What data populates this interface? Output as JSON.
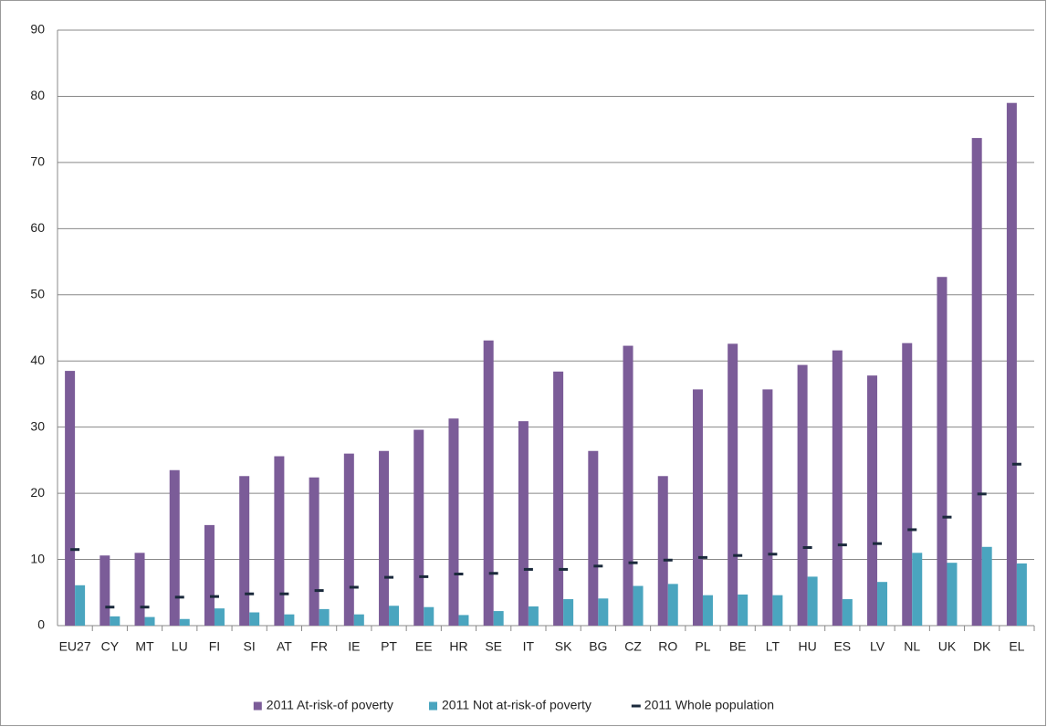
{
  "chart_data": {
    "type": "bar",
    "categories": [
      "EU27",
      "CY",
      "MT",
      "LU",
      "FI",
      "SI",
      "AT",
      "FR",
      "IE",
      "PT",
      "EE",
      "HR",
      "SE",
      "IT",
      "SK",
      "BG",
      "CZ",
      "RO",
      "PL",
      "BE",
      "LT",
      "HU",
      "ES",
      "LV",
      "NL",
      "UK",
      "DK",
      "EL"
    ],
    "series": [
      {
        "name": "2011 At-risk-of poverty",
        "color": "#7b5c98",
        "style": "bar",
        "values": [
          38.5,
          10.6,
          11,
          23.5,
          15.2,
          22.6,
          25.6,
          22.4,
          26,
          26.4,
          29.6,
          31.3,
          43.1,
          30.9,
          38.4,
          26.4,
          42.3,
          22.6,
          35.7,
          42.6,
          35.7,
          39.4,
          41.6,
          37.8,
          42.7,
          52.7,
          73.7,
          79
        ]
      },
      {
        "name": "2011 Not at-risk-of poverty",
        "color": "#4aa5bf",
        "style": "bar",
        "values": [
          6.1,
          1.4,
          1.3,
          1.0,
          2.6,
          2.0,
          1.7,
          2.5,
          1.7,
          3.0,
          2.8,
          1.6,
          2.2,
          2.9,
          4.0,
          4.1,
          6.0,
          6.3,
          4.6,
          4.7,
          4.6,
          7.4,
          4.0,
          6.6,
          11.0,
          9.5,
          11.9,
          9.4
        ]
      },
      {
        "name": "2011 Whole population",
        "color": "#1b2a3c",
        "style": "dash",
        "values": [
          11.5,
          2.8,
          2.8,
          4.3,
          4.4,
          4.8,
          4.8,
          5.3,
          5.8,
          7.3,
          7.4,
          7.8,
          7.9,
          8.5,
          8.5,
          9.0,
          9.5,
          9.9,
          10.3,
          10.6,
          10.8,
          11.8,
          12.2,
          12.4,
          14.5,
          16.4,
          19.9,
          24.4
        ]
      }
    ],
    "ylim": [
      0,
      90
    ],
    "yticks": [
      0,
      10,
      20,
      30,
      40,
      50,
      60,
      70,
      80,
      90
    ],
    "grid": true,
    "legend": "bottom"
  }
}
